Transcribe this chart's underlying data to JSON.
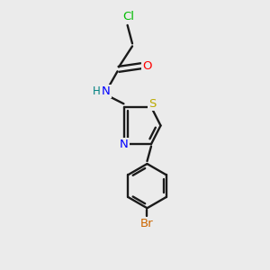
{
  "background_color": "#ebebeb",
  "bond_color": "#1a1a1a",
  "atom_colors": {
    "Cl": "#00bb00",
    "O": "#ff0000",
    "N": "#0000ff",
    "H": "#008080",
    "S": "#bbaa00",
    "Br": "#cc6600"
  },
  "figsize": [
    3.0,
    3.0
  ],
  "dpi": 100
}
